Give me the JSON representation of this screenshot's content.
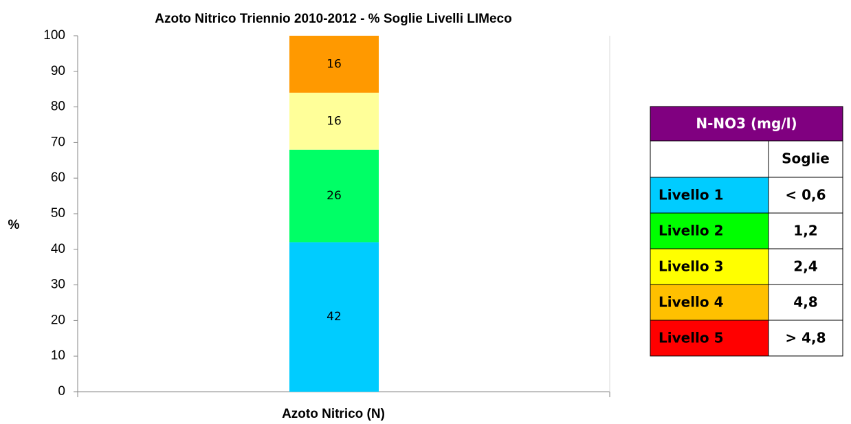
{
  "chart_data": {
    "type": "stacked_bar",
    "title": "Azoto Nitrico Triennio 2010-2012 - % Soglie Livelli LIMeco",
    "categories": [
      "Azoto Nitrico (N)"
    ],
    "series": [
      {
        "color": "#00ccff",
        "values": [
          42
        ]
      },
      {
        "color": "#00ff66",
        "values": [
          26
        ]
      },
      {
        "color": "#ffff99",
        "values": [
          16
        ]
      },
      {
        "color": "#ff9900",
        "values": [
          16
        ]
      }
    ],
    "y_label": "%",
    "ylim": [
      0,
      100
    ],
    "yticks": [
      0,
      10,
      20,
      30,
      40,
      50,
      60,
      70,
      80,
      90,
      100
    ],
    "grid": false
  },
  "table": {
    "title": "N-NO3 (mg/l)",
    "title_color": "#800080",
    "column_header": "Soglie",
    "rows": [
      {
        "label": "Livello 1",
        "value": "< 0,6",
        "color": "#00ccff"
      },
      {
        "label": "Livello 2",
        "value": "1,2",
        "color": "#00ff00"
      },
      {
        "label": "Livello 3",
        "value": "2,4",
        "color": "#ffff00"
      },
      {
        "label": "Livello 4",
        "value": "4,8",
        "color": "#ffc000"
      },
      {
        "label": "Livello 5",
        "value": "> 4,8",
        "color": "#ff0000"
      }
    ]
  }
}
